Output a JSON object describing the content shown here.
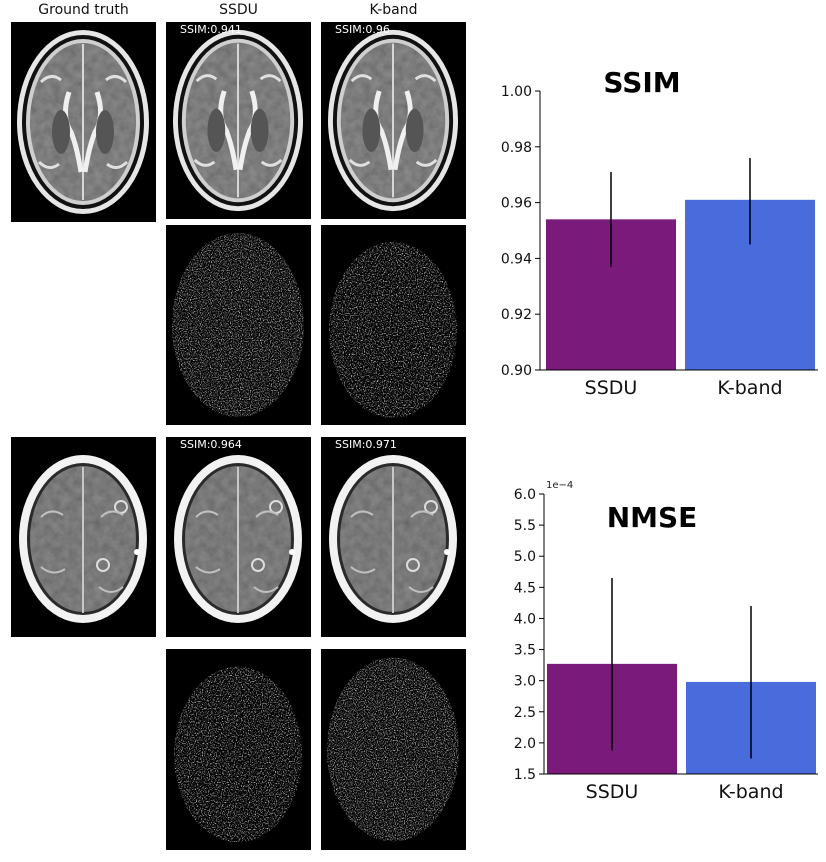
{
  "headers": {
    "ground_truth": "Ground truth",
    "ssdu": "SSDU",
    "kband": "K-band"
  },
  "images": {
    "row1_ssdu_ssim": "SSIM:0.941",
    "row1_kband_ssim": "SSIM:0.96",
    "row2_ssdu_ssim": "SSIM:0.964",
    "row2_kband_ssim": "SSIM:0.971"
  },
  "chart_data": [
    {
      "type": "bar",
      "title": "SSIM",
      "categories": [
        "SSDU",
        "K-band"
      ],
      "values": [
        0.954,
        0.961
      ],
      "error_low": [
        0.937,
        0.945
      ],
      "error_high": [
        0.971,
        0.976
      ],
      "colors": [
        "#7a1b7c",
        "#4a6bdc"
      ],
      "ylim": [
        0.9,
        1.0
      ],
      "yticks": [
        "0.90",
        "0.92",
        "0.94",
        "0.96",
        "0.98",
        "1.00"
      ],
      "ytick_values": [
        0.9,
        0.92,
        0.94,
        0.96,
        0.98,
        1.0
      ],
      "grid": false
    },
    {
      "type": "bar",
      "title": "NMSE",
      "scale_label": "1e−4",
      "categories": [
        "SSDU",
        "K-band"
      ],
      "values": [
        3.27,
        2.98
      ],
      "error_low": [
        1.88,
        1.75
      ],
      "error_high": [
        4.65,
        4.2
      ],
      "colors": [
        "#7a1b7c",
        "#4a6bdc"
      ],
      "ylim": [
        1.5,
        6.0
      ],
      "yticks": [
        "1.5",
        "2.0",
        "2.5",
        "3.0",
        "3.5",
        "4.0",
        "4.5",
        "5.0",
        "5.5",
        "6.0"
      ],
      "ytick_values": [
        1.5,
        2.0,
        2.5,
        3.0,
        3.5,
        4.0,
        4.5,
        5.0,
        5.5,
        6.0
      ],
      "grid": false
    }
  ]
}
